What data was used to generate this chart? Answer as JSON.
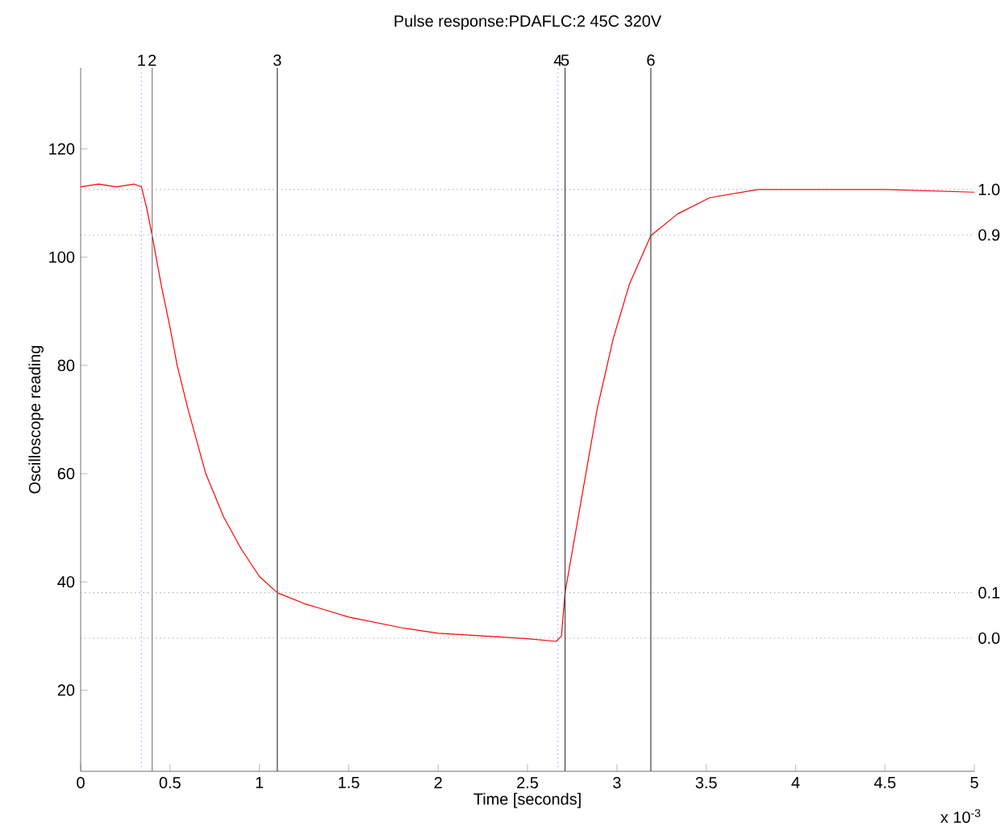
{
  "chart_data": {
    "type": "line",
    "title": "Pulse response:PDAFLC:2 45C 320V",
    "xlabel": "Time [seconds]",
    "ylabel": "Oscilloscope reading",
    "x": [
      0,
      0.1,
      0.2,
      0.3,
      0.34,
      0.37,
      0.4,
      0.45,
      0.5,
      0.54,
      0.6,
      0.65,
      0.7,
      0.8,
      0.9,
      1.0,
      1.1,
      1.25,
      1.35,
      1.5,
      1.8,
      2.0,
      2.26,
      2.5,
      2.66,
      2.69,
      2.71,
      2.8,
      2.89,
      2.98,
      3.07,
      3.19,
      3.34,
      3.52,
      3.79,
      4.0,
      4.5,
      5.0
    ],
    "series": [
      {
        "color": "#ff0000",
        "values": [
          113,
          113.5,
          113,
          113.5,
          113,
          109,
          104,
          95,
          87,
          80,
          72,
          66,
          60,
          52,
          46,
          41,
          38,
          36,
          35,
          33.5,
          31.5,
          30.5,
          30,
          29.5,
          29,
          30,
          38,
          55,
          72,
          85,
          95,
          104,
          108,
          111,
          112.5,
          112.5,
          112.5,
          112
        ]
      }
    ],
    "xlim": [
      0,
      5
    ],
    "ylim": [
      5,
      135
    ],
    "xticks": [
      0,
      0.5,
      1,
      1.5,
      2,
      2.5,
      3,
      3.5,
      4,
      4.5,
      5
    ],
    "yticks": [
      20,
      40,
      60,
      80,
      100,
      120
    ],
    "ref_lines": [
      {
        "axis": "x",
        "value": 0.34,
        "color": "#9999ff",
        "line_style": "dotted"
      },
      {
        "axis": "x",
        "value": 0.4,
        "color": "#808080",
        "line_style": "solid"
      },
      {
        "axis": "x",
        "value": 1.1,
        "color": "#404040",
        "line_style": "solid"
      },
      {
        "axis": "x",
        "value": 2.67,
        "color": "#9999ff",
        "line_style": "dotted"
      },
      {
        "axis": "x",
        "value": 2.71,
        "color": "#404040",
        "line_style": "solid"
      },
      {
        "axis": "x",
        "value": 3.19,
        "color": "#404040",
        "line_style": "solid"
      },
      {
        "axis": "y",
        "value": 112.5,
        "color": "#a0a0a0",
        "line_style": "dotted"
      },
      {
        "axis": "y",
        "value": 104.1,
        "color": "#a0a0a0",
        "line_style": "dotted"
      },
      {
        "axis": "y",
        "value": 38,
        "color": "#a0a0a0",
        "line_style": "dotted"
      },
      {
        "axis": "y",
        "value": 29.6,
        "color": "#a0a0a0",
        "line_style": "dotted"
      }
    ],
    "annotations": [
      "x 10$^{-3}$",
      {
        "text": "1",
        "x": 0.34,
        "y": 135
      },
      {
        "text": "2",
        "x": 0.4,
        "y": 135
      },
      {
        "text": "3",
        "x": 1.1,
        "y": 135
      },
      {
        "text": "4",
        "x": 2.67,
        "y": 135
      },
      {
        "text": "5",
        "x": 2.71,
        "y": 135
      },
      {
        "text": "6",
        "x": 3.19,
        "y": 135
      },
      {
        "text": "1.0",
        "x": 5,
        "y": 112.5
      },
      {
        "text": "0.9",
        "x": 5,
        "y": 104.1
      },
      {
        "text": "0.1",
        "x": 5,
        "y": 38
      },
      {
        "text": "0.0",
        "x": 5,
        "y": 29.6
      }
    ],
    "grid": false,
    "marker": "none",
    "line_style": "solid"
  }
}
